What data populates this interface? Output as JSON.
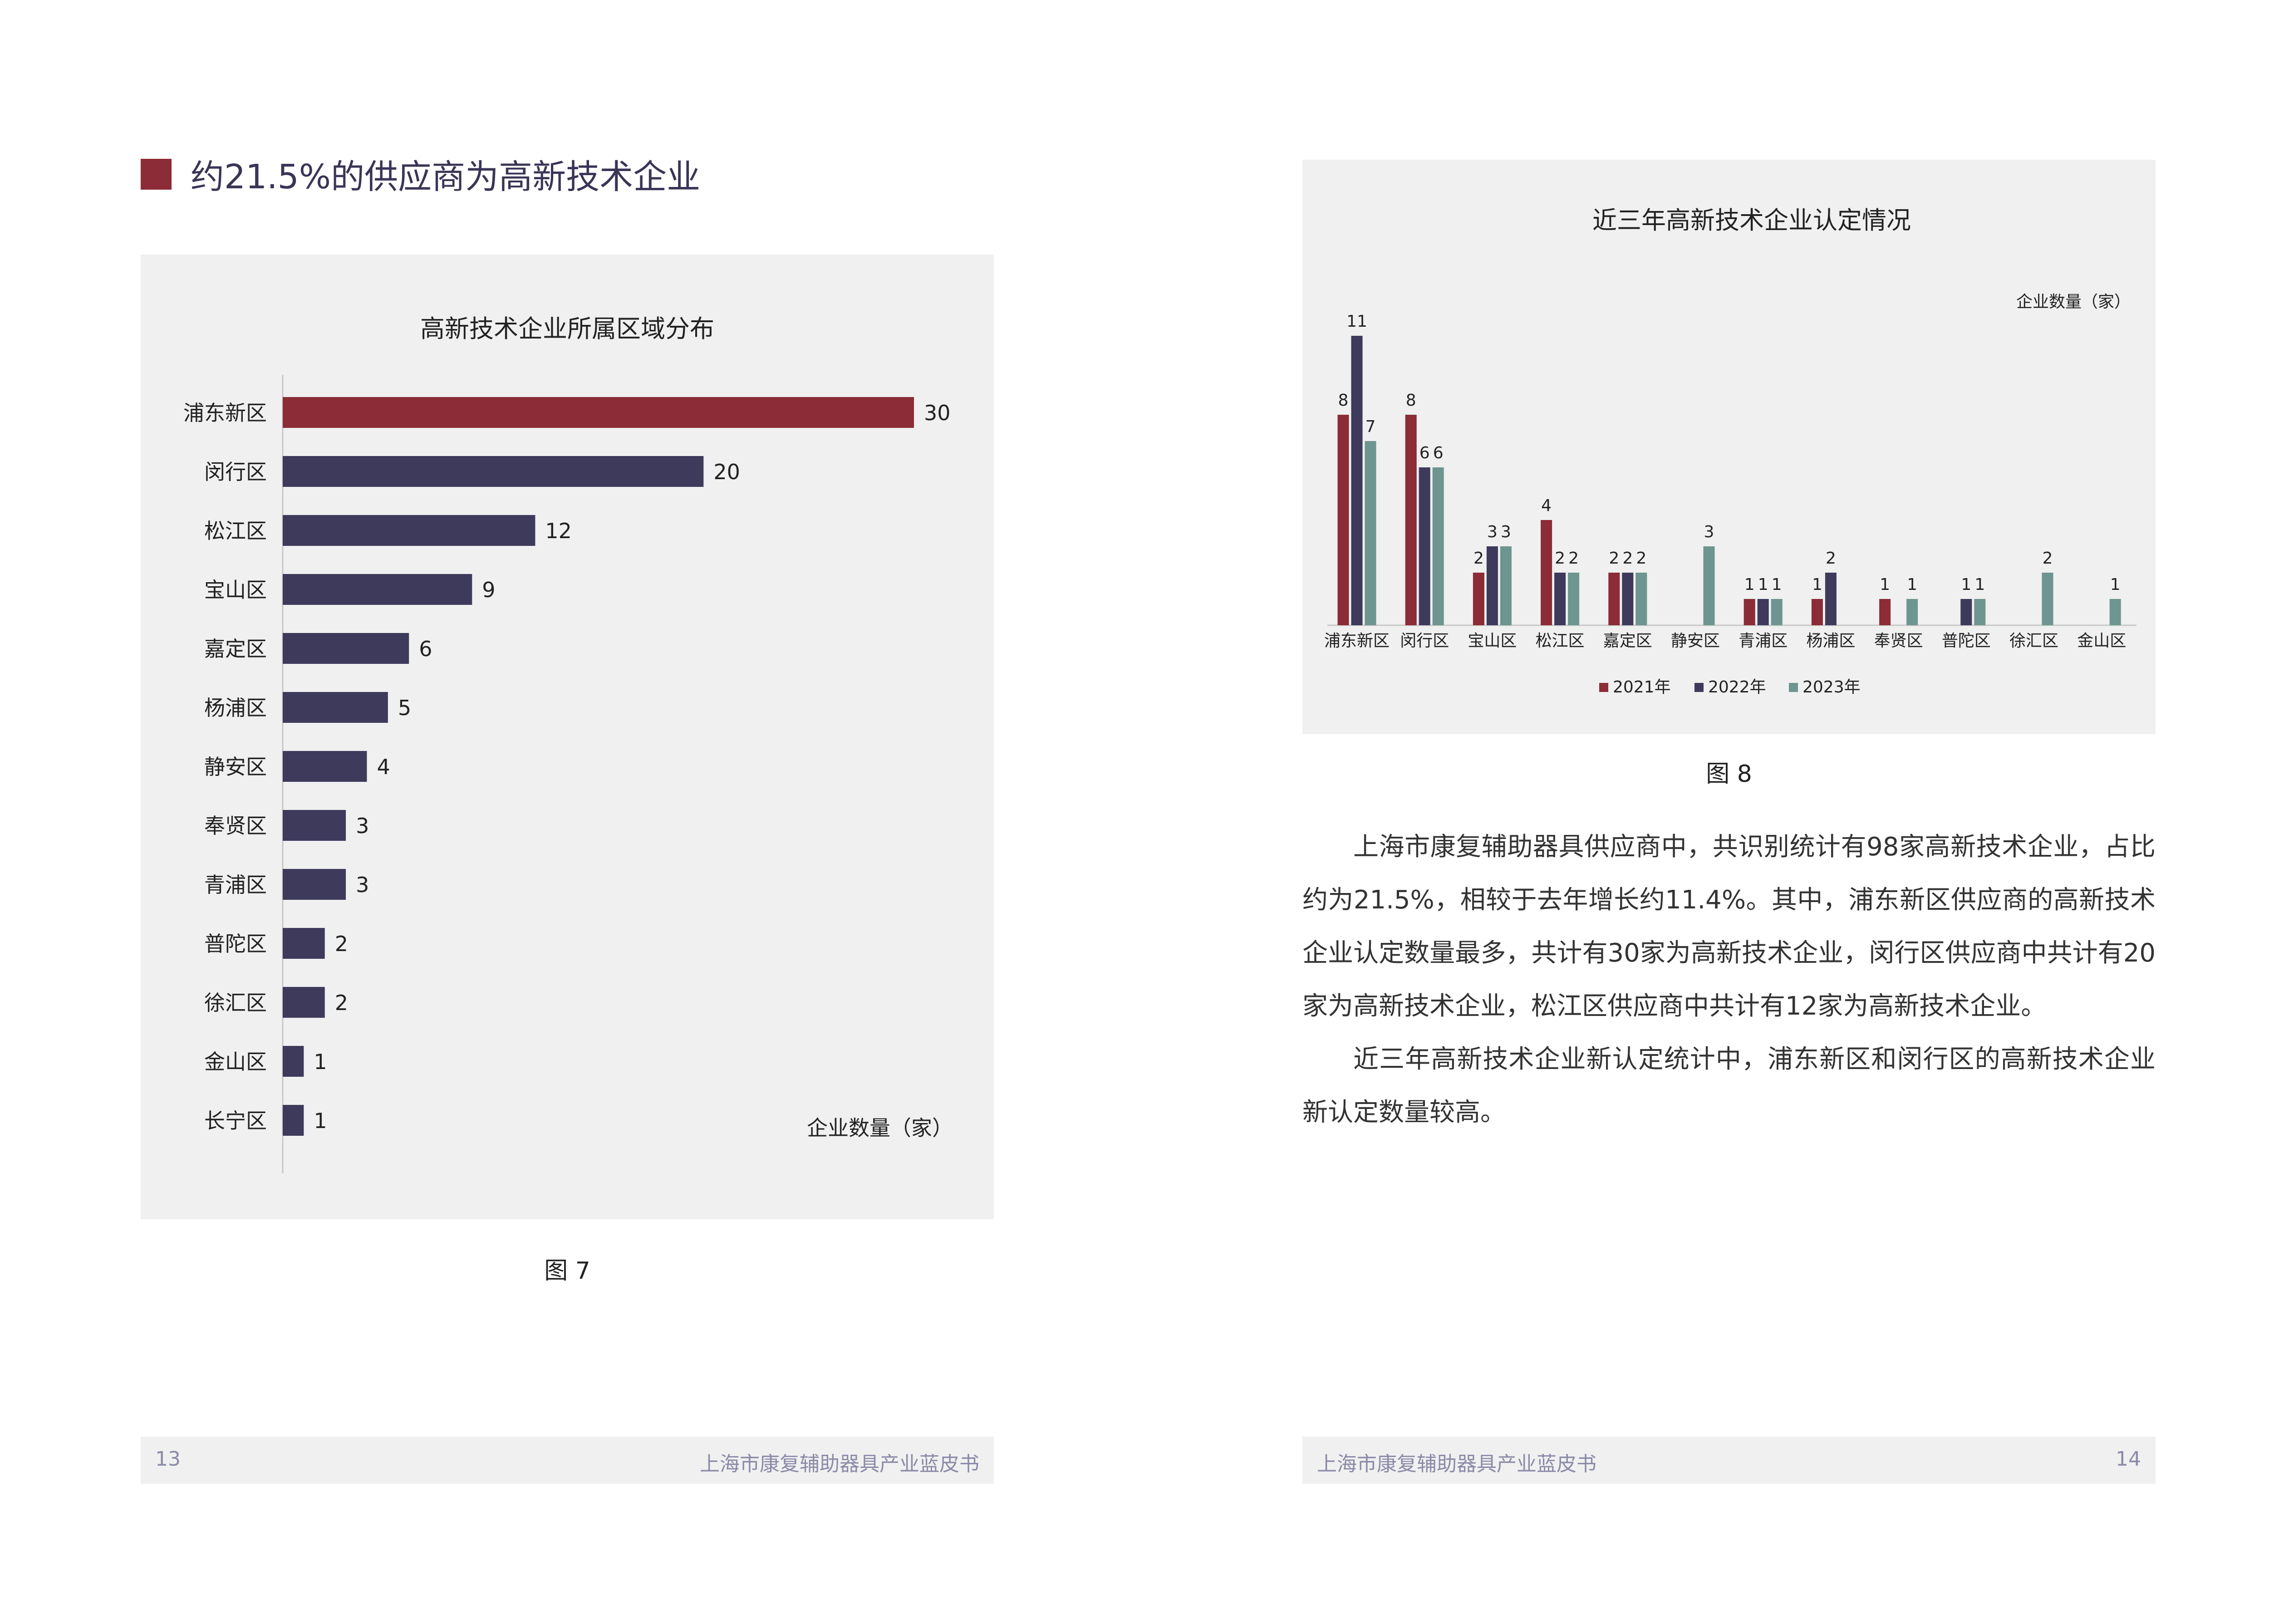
{
  "left_page": {
    "heading": "约21.5%的供应商为高新技术企业",
    "heading_marker_color": "#8b2c37",
    "figure_caption": "图 7",
    "page_number": "13",
    "footer_title": "上海市康复辅助器具产业蓝皮书"
  },
  "right_page": {
    "figure_caption": "图 8",
    "paragraphs": [
      "上海市康复辅助器具供应商中，共识别统计有98家高新技术企业，占比约为21.5%，相较于去年增长约11.4%。其中，浦东新区供应商的高新技术企业认定数量最多，共计有30家为高新技术企业，闵行区供应商中共计有20家为高新技术企业，松江区供应商中共计有12家为高新技术企业。",
      "近三年高新技术企业新认定统计中，浦东新区和闵行区的高新技术企业新认定数量较高。"
    ],
    "page_number": "14",
    "footer_title": "上海市康复辅助器具产业蓝皮书"
  },
  "chart_data": [
    {
      "type": "bar",
      "orientation": "horizontal",
      "title": "高新技术企业所属区域分布",
      "unit_label": "企业数量（家）",
      "categories": [
        "浦东新区",
        "闵行区",
        "松江区",
        "宝山区",
        "嘉定区",
        "杨浦区",
        "静安区",
        "奉贤区",
        "青浦区",
        "普陀区",
        "徐汇区",
        "金山区",
        "长宁区"
      ],
      "values": [
        30,
        20,
        12,
        9,
        6,
        5,
        4,
        3,
        3,
        2,
        2,
        1,
        1
      ],
      "colors": {
        "highlight": "#8b2c37",
        "default": "#3d3a5c"
      },
      "xlim": [
        0,
        30
      ],
      "grid": false
    },
    {
      "type": "bar",
      "title": "近三年高新技术企业认定情况",
      "unit_label": "企业数量（家）",
      "categories": [
        "浦东新区",
        "闵行区",
        "宝山区",
        "松江区",
        "嘉定区",
        "静安区",
        "青浦区",
        "杨浦区",
        "奉贤区",
        "普陀区",
        "徐汇区",
        "金山区"
      ],
      "series": [
        {
          "name": "2021年",
          "color": "#8b2c37",
          "values": [
            8,
            8,
            2,
            4,
            2,
            null,
            1,
            1,
            1,
            null,
            null,
            null
          ]
        },
        {
          "name": "2022年",
          "color": "#3d3a5c",
          "values": [
            11,
            6,
            3,
            2,
            2,
            null,
            1,
            2,
            null,
            1,
            null,
            null
          ]
        },
        {
          "name": "2023年",
          "color": "#6e958f",
          "values": [
            7,
            6,
            3,
            2,
            2,
            3,
            1,
            null,
            1,
            1,
            2,
            1
          ]
        }
      ],
      "ylim": [
        0,
        11
      ],
      "legend_position": "bottom",
      "grid": false
    }
  ]
}
